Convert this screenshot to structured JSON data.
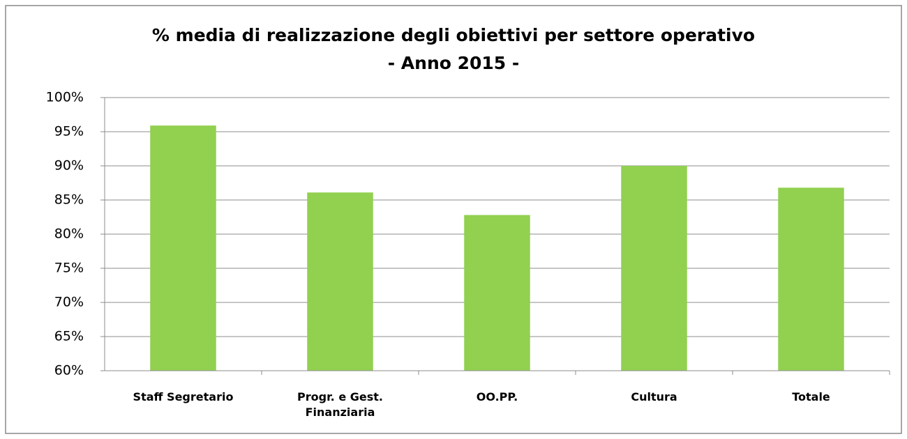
{
  "chart_data": {
    "type": "bar",
    "title": "% media di realizzazione degli obiettivi per settore operativo",
    "subtitle": "- Anno 2015 -",
    "categories": [
      "Staff Segretario",
      "Progr. e Gest. Finanziaria",
      "OO.PP.",
      "Cultura",
      "Totale"
    ],
    "values": [
      95.9,
      86.1,
      82.8,
      90.0,
      86.8
    ],
    "color": "#92d050",
    "ylim": [
      60,
      100
    ],
    "yticks": [
      {
        "value": 60,
        "label": "60%"
      },
      {
        "value": 65,
        "label": "65%"
      },
      {
        "value": 70,
        "label": "70%"
      },
      {
        "value": 75,
        "label": "75%"
      },
      {
        "value": 80,
        "label": "80%"
      },
      {
        "value": 85,
        "label": "85%"
      },
      {
        "value": 90,
        "label": "90%"
      },
      {
        "value": 95,
        "label": "95%"
      },
      {
        "value": 100,
        "label": "100%"
      }
    ],
    "grid": true
  }
}
